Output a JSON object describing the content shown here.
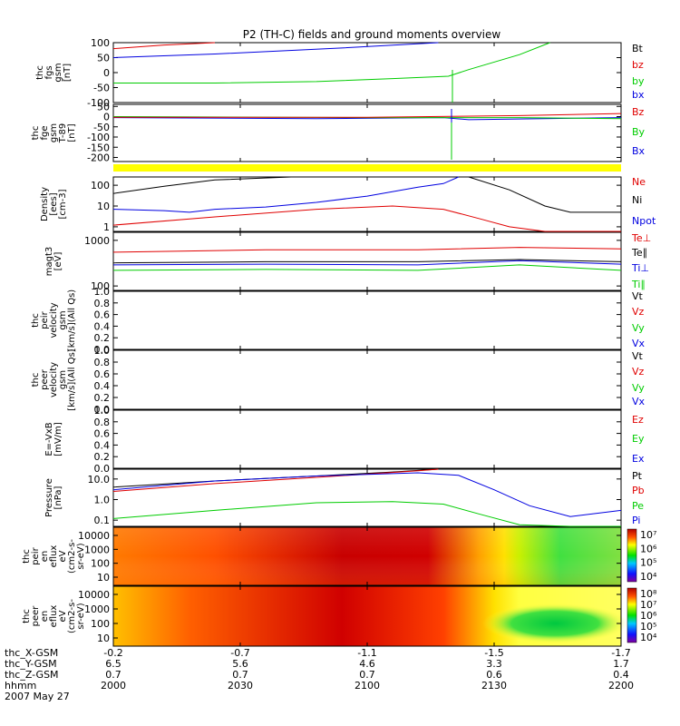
{
  "title": "P2 (TH-C) fields and ground moments overview",
  "colors": {
    "black": "#000000",
    "red": "#e00000",
    "blue": "#0000e0",
    "green": "#00cc00",
    "yellow": "#ffff00"
  },
  "time_ticks": [
    "2000",
    "2030",
    "2100",
    "2130",
    "2200"
  ],
  "footer": {
    "rows": [
      {
        "label": "thc_X-GSM",
        "values": [
          "-0.2",
          "-0.7",
          "-1.1",
          "-1.5",
          "-1.7"
        ]
      },
      {
        "label": "thc_Y-GSM",
        "values": [
          "6.5",
          "5.6",
          "4.6",
          "3.3",
          "1.7"
        ]
      },
      {
        "label": "thc_Z-GSM",
        "values": [
          "0.7",
          "0.7",
          "0.7",
          "0.6",
          "0.4"
        ]
      },
      {
        "label": "hhmm",
        "values": [
          "2000",
          "2030",
          "2100",
          "2130",
          "2200"
        ]
      }
    ],
    "date": "2007 May 27"
  },
  "chart_data": [
    {
      "type": "line",
      "id": "fgs",
      "ylabel": [
        "thc",
        "fgs",
        "gsm",
        "[nT]"
      ],
      "yticks": [
        "100",
        "50",
        "0",
        "-50",
        "-100"
      ],
      "ylim": [
        -100,
        100
      ],
      "legend": [
        {
          "text": "Bt",
          "color": "#000000"
        },
        {
          "text": "bz",
          "color": "#e00000"
        },
        {
          "text": "by",
          "color": "#00cc00"
        },
        {
          "text": "bx",
          "color": "#0000e0"
        }
      ],
      "series": [
        {
          "name": "bz",
          "color": "#e00000",
          "x": [
            0,
            0.1,
            0.2
          ],
          "y": [
            80,
            92,
            100
          ]
        },
        {
          "name": "bx",
          "color": "#0000e0",
          "x": [
            0,
            0.2,
            0.45,
            0.64
          ],
          "y": [
            50,
            62,
            82,
            100
          ]
        },
        {
          "name": "by",
          "color": "#00cc00",
          "x": [
            0,
            0.2,
            0.4,
            0.55,
            0.66,
            0.7,
            0.8,
            0.86
          ],
          "y": [
            -35,
            -35,
            -30,
            -20,
            -12,
            10,
            60,
            100
          ]
        }
      ]
    },
    {
      "type": "line",
      "id": "fgs-fge",
      "ylabel": [
        "thc",
        "fge",
        "gsm",
        "T-89",
        "[nT]"
      ],
      "yticks": [
        "50",
        "0",
        "-50",
        "-100",
        "-150",
        "-200"
      ],
      "ylim": [
        -220,
        60
      ],
      "legend": [
        {
          "text": "Bz",
          "color": "#e00000"
        },
        {
          "text": "By",
          "color": "#00cc00"
        },
        {
          "text": "Bx",
          "color": "#0000e0"
        }
      ],
      "series": [
        {
          "name": "Bx",
          "color": "#0000e0",
          "x": [
            0,
            0.4,
            0.65,
            0.7,
            1
          ],
          "y": [
            -5,
            -10,
            -5,
            -15,
            -5
          ]
        },
        {
          "name": "By",
          "color": "#00cc00",
          "x": [
            0,
            0.5,
            0.8,
            1
          ],
          "y": [
            0,
            -5,
            -5,
            -10
          ]
        },
        {
          "name": "Bz",
          "color": "#e00000",
          "x": [
            0,
            0.5,
            0.8,
            1
          ],
          "y": [
            -3,
            -3,
            5,
            15
          ]
        }
      ]
    },
    {
      "type": "line",
      "id": "density",
      "ylabel": [
        "Density",
        "[ees]",
        "[cm-3]"
      ],
      "log": true,
      "yticks": [
        "100",
        "10",
        "1"
      ],
      "ylim": [
        0.6,
        250
      ],
      "legend": [
        {
          "text": "Ne",
          "color": "#e00000"
        },
        {
          "text": "Ni",
          "color": "#000000"
        },
        {
          "text": "Npot",
          "color": "#0000e0"
        }
      ],
      "series": [
        {
          "name": "Ne",
          "color": "#e00000",
          "x": [
            0,
            0.2,
            0.4,
            0.55,
            0.65,
            0.72,
            0.78,
            0.85,
            1
          ],
          "y": [
            1.2,
            3,
            7,
            10,
            7,
            2.5,
            1,
            0.6,
            0.6
          ]
        },
        {
          "name": "Ni",
          "color": "#000000",
          "x": [
            0,
            0.1,
            0.2,
            0.35,
            0.7,
            0.78,
            0.85,
            0.9,
            1
          ],
          "y": [
            40,
            90,
            180,
            250,
            250,
            60,
            10,
            5,
            5
          ]
        },
        {
          "name": "Npot",
          "color": "#0000e0",
          "x": [
            0,
            0.1,
            0.15,
            0.2,
            0.3,
            0.4,
            0.5,
            0.6,
            0.65,
            0.68
          ],
          "y": [
            7,
            6,
            5,
            7,
            9,
            15,
            30,
            80,
            120,
            250
          ]
        }
      ]
    },
    {
      "type": "line",
      "id": "temperature",
      "ylabel": [
        "magt3",
        "[eV]"
      ],
      "log": true,
      "yticks": [
        "1000",
        "100"
      ],
      "ylim": [
        80,
        1500
      ],
      "legend": [
        {
          "text": "Te⊥",
          "color": "#e00000"
        },
        {
          "text": "Te∥",
          "color": "#000000"
        },
        {
          "text": "Ti⊥",
          "color": "#0000e0"
        },
        {
          "text": "Ti∥",
          "color": "#00cc00"
        }
      ],
      "series": [
        {
          "name": "Te⊥",
          "color": "#e00000",
          "x": [
            0,
            0.3,
            0.6,
            0.8,
            1
          ],
          "y": [
            550,
            620,
            620,
            700,
            650
          ]
        },
        {
          "name": "Te∥",
          "color": "#000000",
          "x": [
            0,
            0.3,
            0.6,
            0.8,
            1
          ],
          "y": [
            320,
            340,
            340,
            380,
            340
          ]
        },
        {
          "name": "Ti⊥",
          "color": "#0000e0",
          "x": [
            0,
            0.3,
            0.6,
            0.8,
            1
          ],
          "y": [
            290,
            300,
            290,
            360,
            300
          ]
        },
        {
          "name": "Ti∥",
          "color": "#00cc00",
          "x": [
            0,
            0.3,
            0.6,
            0.8,
            1
          ],
          "y": [
            220,
            230,
            220,
            290,
            220
          ]
        }
      ]
    },
    {
      "type": "line",
      "id": "peir-velocity",
      "ylabel": [
        "thc",
        "peir",
        "velocity",
        "gsm",
        "[km/s](All Qs)"
      ],
      "yticks": [
        "1.0",
        "0.8",
        "0.6",
        "0.4",
        "0.2",
        "0.0"
      ],
      "ylim": [
        0,
        1
      ],
      "legend": [
        {
          "text": "Vt",
          "color": "#000000"
        },
        {
          "text": "Vz",
          "color": "#e00000"
        },
        {
          "text": "Vy",
          "color": "#00cc00"
        },
        {
          "text": "Vx",
          "color": "#0000e0"
        }
      ],
      "series": []
    },
    {
      "type": "line",
      "id": "peer-velocity",
      "ylabel": [
        "thc",
        "peer",
        "velocity",
        "gsm",
        "[km/s](All Qs)"
      ],
      "yticks": [
        "1.0",
        "0.8",
        "0.6",
        "0.4",
        "0.2",
        "0.0"
      ],
      "ylim": [
        0,
        1
      ],
      "legend": [
        {
          "text": "Vt",
          "color": "#000000"
        },
        {
          "text": "Vz",
          "color": "#e00000"
        },
        {
          "text": "Vy",
          "color": "#00cc00"
        },
        {
          "text": "Vx",
          "color": "#0000e0"
        }
      ],
      "series": []
    },
    {
      "type": "line",
      "id": "efield",
      "ylabel": [
        "E=-VxB",
        "[mV/m]"
      ],
      "yticks": [
        "1.0",
        "0.8",
        "0.6",
        "0.4",
        "0.2",
        "0.0"
      ],
      "ylim": [
        0,
        1
      ],
      "legend": [
        {
          "text": "Ez",
          "color": "#e00000"
        },
        {
          "text": "Ey",
          "color": "#00cc00"
        },
        {
          "text": "Ex",
          "color": "#0000e0"
        }
      ],
      "series": []
    },
    {
      "type": "line",
      "id": "pressure",
      "ylabel": [
        "Pressure",
        "[nPa]"
      ],
      "log": true,
      "yticks": [
        "10.0",
        "1.0",
        "0.1"
      ],
      "ylim": [
        0.05,
        30
      ],
      "legend": [
        {
          "text": "Pt",
          "color": "#000000"
        },
        {
          "text": "Pb",
          "color": "#e00000"
        },
        {
          "text": "Pe",
          "color": "#00cc00"
        },
        {
          "text": "Pi",
          "color": "#0000e0"
        }
      ],
      "series": [
        {
          "name": "Pt",
          "color": "#000000",
          "x": [
            0,
            0.2,
            0.4,
            0.55,
            0.64
          ],
          "y": [
            4,
            8,
            14,
            22,
            30
          ]
        },
        {
          "name": "Pb",
          "color": "#e00000",
          "x": [
            0,
            0.2,
            0.4,
            0.6,
            0.64
          ],
          "y": [
            2.5,
            6,
            12,
            25,
            30
          ]
        },
        {
          "name": "Pi",
          "color": "#0000e0",
          "x": [
            0,
            0.2,
            0.4,
            0.6,
            0.68,
            0.75,
            0.82,
            0.9,
            1
          ],
          "y": [
            3,
            8,
            14,
            20,
            15,
            3,
            0.5,
            0.15,
            0.3
          ]
        },
        {
          "name": "Pe",
          "color": "#00cc00",
          "x": [
            0,
            0.2,
            0.4,
            0.55,
            0.65,
            0.72,
            0.8,
            0.9,
            1
          ],
          "y": [
            0.12,
            0.3,
            0.7,
            0.8,
            0.6,
            0.2,
            0.06,
            0.05,
            0.05
          ]
        }
      ]
    },
    {
      "type": "heatmap",
      "id": "peir-eflux",
      "ylabel": [
        "thc",
        "peir",
        "en",
        "eflux",
        "eV",
        "(cm2-s-",
        "sr-eV)"
      ],
      "yticks": [
        "10000",
        "1000",
        "100",
        "10"
      ],
      "colorbar_ticks": [
        "10⁷",
        "10⁶",
        "10⁵",
        "10⁴"
      ]
    },
    {
      "type": "heatmap",
      "id": "peer-eflux",
      "ylabel": [
        "thc",
        "peer",
        "en",
        "eflux",
        "eV",
        "(cm2-s-",
        "sr-eV)"
      ],
      "yticks": [
        "10000",
        "1000",
        "100",
        "10"
      ],
      "colorbar_ticks": [
        "10⁸",
        "10⁷",
        "10⁶",
        "10⁵",
        "10⁴"
      ]
    }
  ]
}
